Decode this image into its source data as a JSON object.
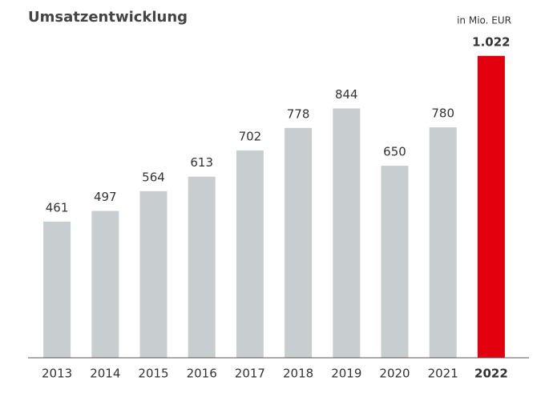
{
  "chart_data": {
    "type": "bar",
    "title": "Umsatzentwicklung",
    "unit_label": "in Mio. EUR",
    "categories": [
      "2013",
      "2014",
      "2015",
      "2016",
      "2017",
      "2018",
      "2019",
      "2020",
      "2021",
      "2022"
    ],
    "values": [
      461,
      497,
      564,
      613,
      702,
      778,
      844,
      650,
      780,
      1022
    ],
    "value_labels": [
      "461",
      "497",
      "564",
      "613",
      "702",
      "778",
      "844",
      "650",
      "780",
      "1.022"
    ],
    "colors": [
      "#c8cdd0",
      "#c8cdd0",
      "#c8cdd0",
      "#c8cdd0",
      "#c8cdd0",
      "#c8cdd0",
      "#c8cdd0",
      "#c8cdd0",
      "#c8cdd0",
      "#e2000f"
    ],
    "highlight_index": 9,
    "ylim": [
      0,
      1100
    ]
  }
}
